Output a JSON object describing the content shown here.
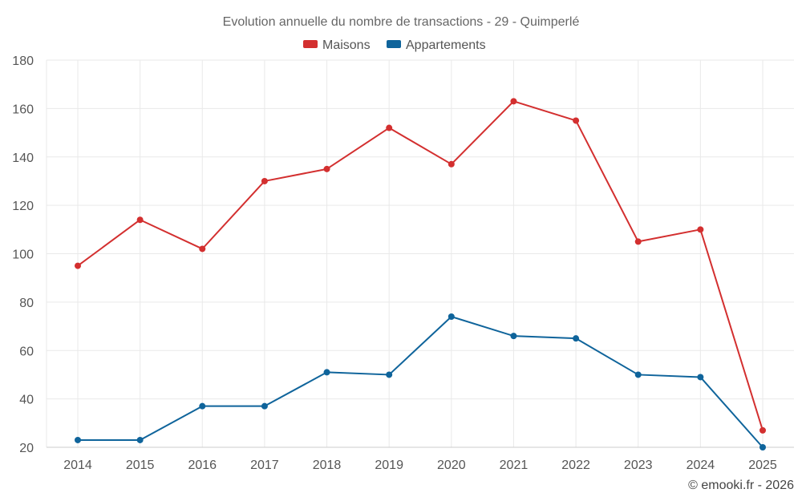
{
  "chart_data": {
    "type": "line",
    "title": "Evolution annuelle du nombre de transactions - 29 - Quimperlé",
    "xlabel": "",
    "ylabel": "",
    "categories": [
      "2014",
      "2015",
      "2016",
      "2017",
      "2018",
      "2019",
      "2020",
      "2021",
      "2022",
      "2023",
      "2024",
      "2025"
    ],
    "ylim": [
      20,
      180
    ],
    "yticks": [
      20,
      40,
      60,
      80,
      100,
      120,
      140,
      160,
      180
    ],
    "grid": true,
    "legend_position": "top-center",
    "series": [
      {
        "name": "Maisons",
        "color": "#d32f2f",
        "values": [
          95,
          114,
          102,
          130,
          135,
          152,
          137,
          163,
          155,
          105,
          110,
          27
        ]
      },
      {
        "name": "Appartements",
        "color": "#0f649b",
        "values": [
          23,
          23,
          37,
          37,
          51,
          50,
          74,
          66,
          65,
          50,
          49,
          20
        ]
      }
    ],
    "credit": "© emooki.fr - 2026"
  }
}
